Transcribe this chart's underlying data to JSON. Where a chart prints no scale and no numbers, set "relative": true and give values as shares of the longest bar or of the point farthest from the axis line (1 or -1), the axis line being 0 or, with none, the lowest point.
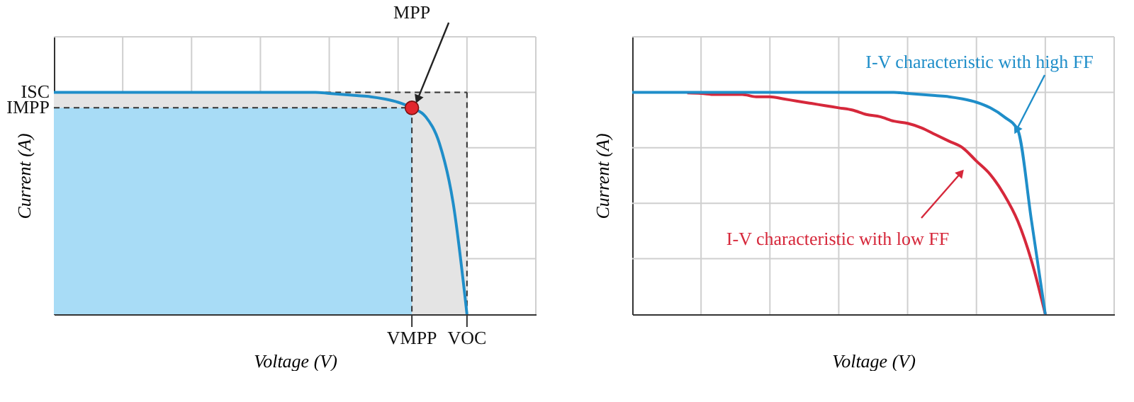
{
  "chart_data": [
    {
      "type": "line",
      "relative": true,
      "xlabel": "Voltage (V)",
      "ylabel": "Current (A)",
      "grid": true,
      "categories": [
        null,
        null,
        null,
        null,
        null,
        null,
        null,
        null,
        null,
        null,
        null,
        null,
        null,
        null,
        null,
        null,
        null,
        null,
        null,
        null,
        null,
        null,
        null,
        null,
        null,
        null,
        null,
        null,
        null,
        null,
        null,
        null,
        null,
        null,
        null,
        null
      ],
      "series": [
        {
          "color": "#1f8ec9",
          "values": [
            1,
            1,
            1,
            1,
            1,
            1,
            1,
            1,
            1,
            1,
            1,
            1,
            1,
            1,
            1,
            1,
            1,
            1,
            1,
            1,
            0.995,
            0.99,
            0.985,
            0.98,
            0.97,
            0.955,
            0.93,
            0.89,
            0.77,
            0.5,
            0,
            null,
            null,
            null,
            null,
            null
          ]
        }
      ],
      "annotations": [
        "MPP",
        "ISC",
        "IMPP",
        "VMPP",
        "VOC"
      ]
    },
    {
      "type": "line",
      "relative": true,
      "xlabel": "Voltage (V)",
      "ylabel": "Current (A)",
      "grid": true,
      "categories": [
        null,
        null,
        null,
        null,
        null,
        null,
        null,
        null,
        null,
        null,
        null,
        null,
        null,
        null,
        null,
        null,
        null,
        null,
        null,
        null,
        null,
        null,
        null,
        null,
        null,
        null,
        null,
        null,
        null,
        null,
        null,
        null,
        null,
        null,
        null,
        null
      ],
      "series": [
        {
          "color": "#d6283b",
          "values": [
            null,
            null,
            null,
            null,
            0.997,
            0.995,
            0.99,
            0.99,
            0.99,
            0.98,
            0.98,
            0.97,
            0.96,
            0.95,
            0.94,
            0.93,
            0.92,
            0.9,
            0.89,
            0.87,
            0.86,
            0.84,
            0.81,
            0.78,
            0.75,
            0.69,
            0.63,
            0.54,
            0.42,
            0.24,
            0,
            null,
            null,
            null,
            null,
            null
          ]
        },
        {
          "color": "#1f8ec9",
          "values": [
            1,
            1,
            1,
            1,
            1,
            1,
            1,
            1,
            1,
            1,
            1,
            1,
            1,
            1,
            1,
            1,
            1,
            1,
            1,
            1,
            0.995,
            0.99,
            0.985,
            0.98,
            0.97,
            0.955,
            0.93,
            0.89,
            0.83,
            0.42,
            0,
            null,
            null,
            null,
            null,
            null
          ]
        }
      ],
      "annotations": [
        "I-V characteristic with high FF",
        "I-V characteristic with low FF"
      ]
    }
  ]
}
